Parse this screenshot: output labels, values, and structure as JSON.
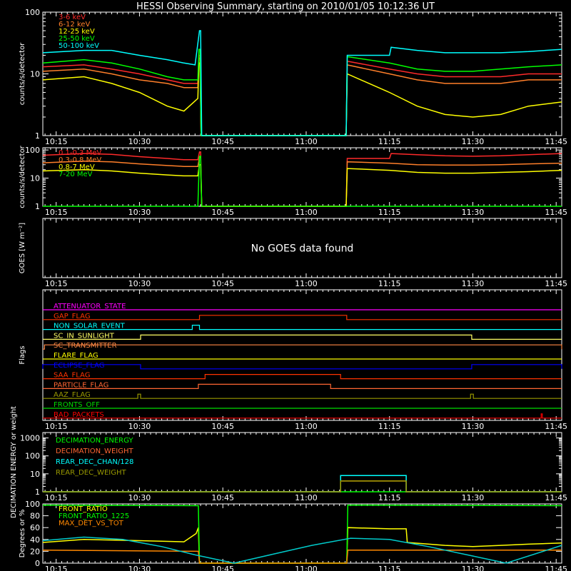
{
  "chart_data": {
    "title": "HESSI Observing Summary, starting on 2010/01/05 10:12:36 UT",
    "x_tick_labels": [
      "10:15",
      "10:30",
      "10:45",
      "11:00",
      "11:15",
      "11:30",
      "11:45"
    ],
    "x_range_minutes": [
      12.6,
      106
    ],
    "x_ticks_minutes": [
      15,
      30,
      45,
      60,
      75,
      90,
      105
    ],
    "panels": [
      {
        "id": "lowe",
        "type": "line",
        "ylabel": "counts/s/detector",
        "yscale": "log",
        "ylim": [
          1,
          100
        ],
        "y_tick_labels": [
          "1",
          "10",
          "100"
        ],
        "series": [
          {
            "name": "3-6 keV",
            "color": "#ff2a2a",
            "x": [
              12.6,
              20,
              25,
              30,
              35,
              38,
              40.5,
              40.7,
              40.9,
              41.1,
              67.2,
              67.4,
              75,
              80,
              85,
              90,
              95,
              100,
              106
            ],
            "y": [
              13,
              14,
              12,
              10,
              8,
              7,
              7,
              20,
              20,
              1,
              1,
              16,
              12,
              10,
              9,
              9,
              9,
              10,
              10
            ]
          },
          {
            "name": "6-12 keV",
            "color": "#ff7f2a",
            "x": [
              12.6,
              20,
              25,
              30,
              35,
              38,
              40.5,
              40.7,
              40.9,
              41.1,
              67.2,
              67.4,
              75,
              80,
              85,
              90,
              95,
              100,
              106
            ],
            "y": [
              11,
              12,
              10,
              8,
              7,
              6,
              6,
              18,
              18,
              1,
              1,
              14,
              10,
              8,
              7,
              7,
              7,
              8,
              8
            ]
          },
          {
            "name": "12-25 keV",
            "color": "#ffff00",
            "x": [
              12.6,
              20,
              25,
              30,
              35,
              38,
              40.5,
              40.7,
              40.9,
              41.1,
              67.2,
              67.4,
              75,
              80,
              85,
              90,
              95,
              100,
              106
            ],
            "y": [
              8,
              9,
              7,
              5,
              3,
              2.5,
              4,
              15,
              15,
              1,
              1,
              10,
              5,
              3,
              2.2,
              2,
              2.2,
              3,
              3.5
            ]
          },
          {
            "name": "25-50 keV",
            "color": "#00ff00",
            "x": [
              12.6,
              20,
              25,
              30,
              35,
              38,
              40.5,
              40.7,
              40.9,
              41.1,
              67.2,
              67.4,
              75,
              80,
              85,
              90,
              95,
              100,
              106
            ],
            "y": [
              15,
              17,
              15,
              12,
              9,
              8,
              8,
              25,
              25,
              1,
              1,
              19,
              15,
              12,
              11,
              11,
              12,
              13,
              14
            ]
          },
          {
            "name": "50-100 keV",
            "color": "#00ffff",
            "x": [
              12.6,
              20,
              25,
              30,
              35,
              38,
              40,
              40.8,
              41,
              41.2,
              67.2,
              67.4,
              75,
              75.3,
              80,
              85,
              90,
              95,
              100,
              106
            ],
            "y": [
              22,
              24,
              24,
              20,
              17,
              15,
              14,
              50,
              50,
              1,
              1,
              20,
              20,
              27,
              24,
              22,
              22,
              22,
              23,
              25
            ]
          }
        ]
      },
      {
        "id": "highe",
        "type": "line",
        "ylabel": "counts/s/detector",
        "yscale": "log",
        "ylim": [
          1,
          120
        ],
        "y_tick_labels": [
          "1",
          "10",
          "100"
        ],
        "series": [
          {
            "name": "0.1-0.3 MeV",
            "color": "#ff2a2a",
            "x": [
              12.6,
              20,
              25,
              30,
              35,
              38,
              40.5,
              40.8,
              41,
              41.2,
              67.2,
              67.4,
              75,
              75.3,
              80,
              85,
              90,
              95,
              100,
              106
            ],
            "y": [
              65,
              75,
              70,
              58,
              50,
              45,
              45,
              85,
              85,
              1,
              1,
              50,
              50,
              75,
              68,
              62,
              60,
              62,
              68,
              75
            ]
          },
          {
            "name": "0.3-0.8 MeV",
            "color": "#ff7f2a",
            "x": [
              12.6,
              20,
              25,
              30,
              35,
              38,
              40.5,
              40.8,
              41,
              41.2,
              67.2,
              67.4,
              75,
              80,
              85,
              90,
              95,
              100,
              106
            ],
            "y": [
              35,
              40,
              38,
              32,
              28,
              26,
              26,
              55,
              55,
              1,
              1,
              38,
              34,
              30,
              29,
              29,
              30,
              32,
              34
            ]
          },
          {
            "name": "0.8-7 MeV",
            "color": "#ffff00",
            "x": [
              12.6,
              20,
              25,
              30,
              35,
              38,
              40.5,
              40.8,
              41,
              41.2,
              67.2,
              67.4,
              75,
              80,
              85,
              90,
              95,
              100,
              106
            ],
            "y": [
              18,
              20,
              18,
              15,
              13,
              12,
              12,
              30,
              30,
              1,
              1,
              22,
              19,
              16,
              15,
              15,
              16,
              17,
              19
            ]
          },
          {
            "name": "7-20 MeV",
            "color": "#00ff00",
            "x": [
              12.6,
              40.5,
              40.8,
              41,
              41.2,
              106
            ],
            "y": [
              1,
              1,
              60,
              60,
              1,
              1
            ]
          }
        ]
      },
      {
        "id": "goes",
        "type": "line",
        "ylabel": "GOES [W m⁻²]",
        "message": "No GOES data found",
        "series": []
      },
      {
        "id": "flags",
        "type": "step",
        "ylabel": "Flags",
        "flags": [
          {
            "name": "ATTENUATOR_STATE",
            "color": "#ff00ff",
            "segments": []
          },
          {
            "name": "GAP_FLAG",
            "color": "#ff3300",
            "segments": [
              [
                40.8,
                67.3
              ]
            ]
          },
          {
            "name": "NON_SOLAR_EVENT",
            "color": "#00ffff",
            "segments": [
              [
                39.5,
                40.8
              ]
            ]
          },
          {
            "name": "SC_IN_SUNLIGHT",
            "color": "#ffff66",
            "segments": [
              [
                30.2,
                89.8
              ]
            ]
          },
          {
            "name": "SC_TRANSMITTER",
            "color": "#ff8844",
            "segments": [
              [
                12.9,
                106
              ]
            ]
          },
          {
            "name": "FLARE_FLAG",
            "color": "#ffff00",
            "segments": []
          },
          {
            "name": "ECLIPSE_FLAG",
            "color": "#0000ff",
            "segments": [
              [
                12.6,
                30.2
              ],
              [
                89.8,
                106
              ]
            ]
          },
          {
            "name": "SAA_FLAG",
            "color": "#ff3300",
            "segments": [
              [
                41.8,
                66.2
              ]
            ]
          },
          {
            "name": "PARTICLE_FLAG",
            "color": "#ff6633",
            "segments": [
              [
                40.6,
                64.4
              ]
            ]
          },
          {
            "name": "AAZ_FLAG",
            "color": "#999900",
            "segments": [
              [
                29.7,
                30.2
              ],
              [
                89.6,
                90.1
              ]
            ]
          },
          {
            "name": "FRONTS_OFF",
            "color": "#00dd00",
            "segments": []
          },
          {
            "name": "BAD_PACKETS",
            "color": "#ff0000",
            "segments": [
              [
                102.3,
                102.5
              ]
            ]
          }
        ]
      },
      {
        "id": "decim",
        "type": "step",
        "ylabel": "DECIMATION ENERGY or weight",
        "yscale": "log",
        "ylim": [
          1,
          2000
        ],
        "y_tick_labels": [
          "1",
          "10",
          "100",
          "1000"
        ],
        "series": [
          {
            "name": "DECIMATION_ENERGY",
            "color": "#00ff00",
            "x": [
              12.6,
              106
            ],
            "y": [
              1,
              1
            ]
          },
          {
            "name": "DECIMATION_WEIGHT",
            "color": "#ff6633",
            "x": [
              12.6,
              66.2,
              66.2,
              78,
              78,
              106
            ],
            "y": [
              1,
              1,
              4,
              4,
              1,
              1
            ]
          },
          {
            "name": "REAR_DEC_CHAN/128",
            "color": "#00ffff",
            "x": [
              12.6,
              66.2,
              66.2,
              78,
              78,
              106
            ],
            "y": [
              1,
              1,
              8,
              8,
              1,
              1
            ]
          },
          {
            "name": "REAR_DEC_WEIGHT",
            "color": "#999900",
            "x": [
              12.6,
              66.2,
              66.2,
              78,
              78,
              106
            ],
            "y": [
              1,
              1,
              4,
              4,
              1,
              1
            ]
          }
        ]
      },
      {
        "id": "ratio",
        "type": "line",
        "ylabel": "Degrees or %",
        "ylim": [
          0,
          100
        ],
        "y_tick_labels": [
          "0",
          "20",
          "40",
          "60",
          "80",
          "100"
        ],
        "series": [
          {
            "name": "FRONT_RATIO",
            "color": "#ffff00",
            "x": [
              12.6,
              20,
              30,
              38,
              40.2,
              40.6,
              40.8,
              67.3,
              67.5,
              75,
              78,
              78.2,
              85,
              90,
              95,
              100,
              106
            ],
            "y": [
              35,
              40,
              38,
              36,
              50,
              60,
              0,
              0,
              60,
              58,
              58,
              35,
              30,
              28,
              30,
              32,
              34
            ]
          },
          {
            "name": "FRONT_RATIO_1225",
            "color": "#00ff00",
            "x": [
              12.6,
              40.6,
              40.8,
              67.3,
              67.5,
              106
            ],
            "y": [
              98,
              97,
              0,
              0,
              98,
              97
            ]
          },
          {
            "name": "MAX_DET_VS_TOT",
            "color": "#ff8800",
            "x": [
              12.6,
              40.6,
              40.8,
              67.3,
              67.5,
              106
            ],
            "y": [
              22,
              20,
              0,
              0,
              22,
              22
            ]
          },
          {
            "name": "",
            "color": "#00cccc",
            "x": [
              12.6,
              20,
              27,
              34,
              40,
              47,
              54,
              61,
              68,
              75,
              82,
              89,
              96,
              106
            ],
            "y": [
              38,
              44,
              40,
              28,
              14,
              0,
              15,
              30,
              42,
              40,
              28,
              14,
              0,
              30
            ]
          }
        ]
      }
    ]
  }
}
